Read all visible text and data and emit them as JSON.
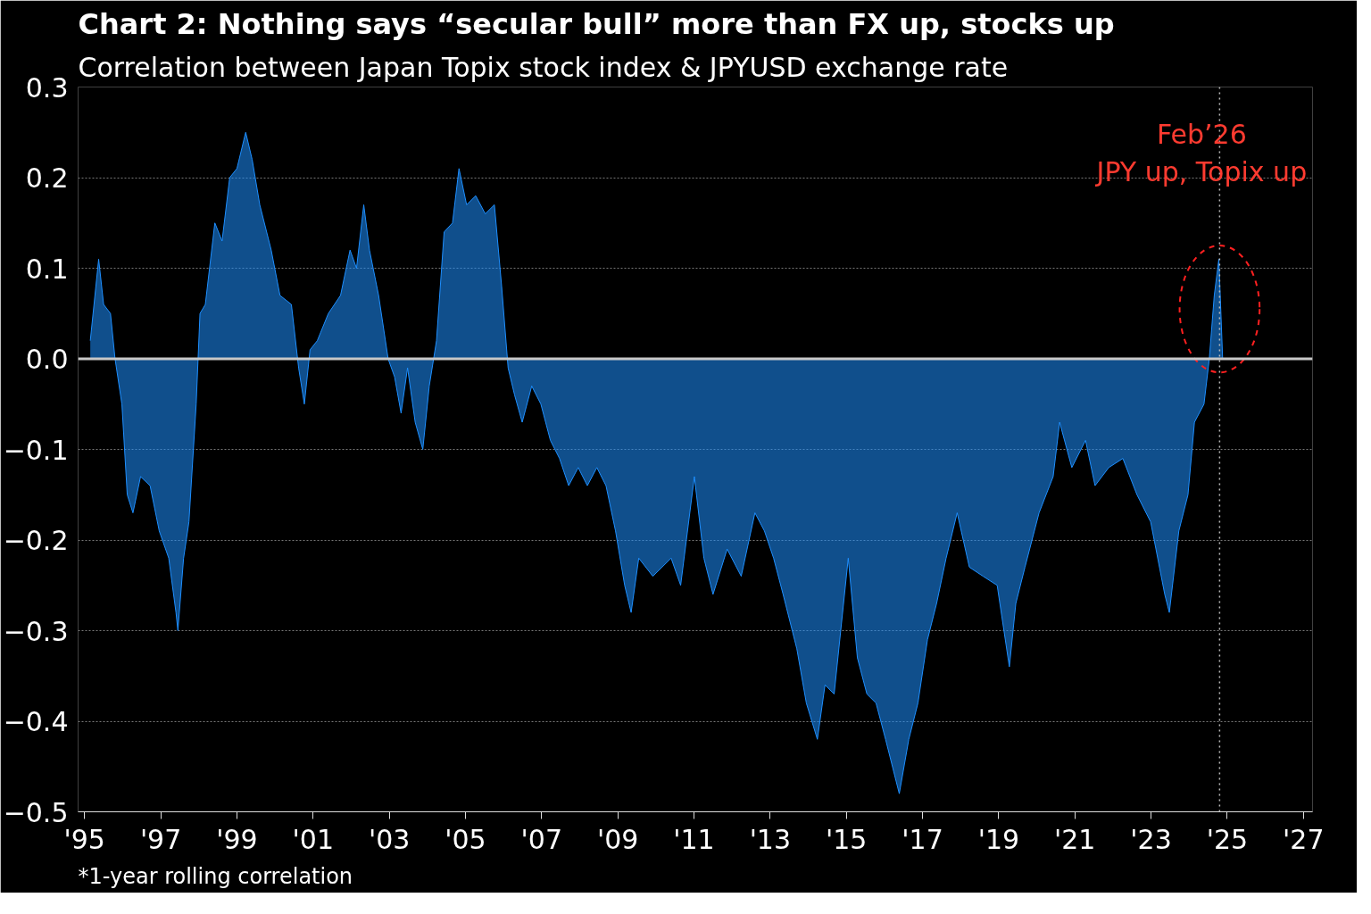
{
  "chart_data": {
    "type": "area",
    "title": "Chart 2: Nothing says “secular bull” more than FX up, stocks up",
    "subtitle": "Correlation between Japan Topix stock index & JPYUSD exchange rate",
    "x": [
      1995.15,
      1995.37,
      1995.5,
      1995.68,
      1995.8,
      1995.98,
      1996.12,
      1996.27,
      1996.47,
      1996.72,
      1996.96,
      1997.21,
      1997.4,
      1997.45,
      1997.6,
      1997.74,
      1997.93,
      1998.03,
      1998.17,
      1998.42,
      1998.61,
      1998.81,
      1999.0,
      1999.23,
      1999.4,
      1999.6,
      1999.9,
      2000.13,
      2000.43,
      2000.62,
      2000.77,
      2000.92,
      2001.11,
      2001.4,
      2001.72,
      2001.97,
      2002.14,
      2002.33,
      2002.48,
      2002.72,
      2002.97,
      2003.14,
      2003.31,
      2003.48,
      2003.68,
      2003.88,
      2004.05,
      2004.24,
      2004.44,
      2004.66,
      2004.83,
      2005.03,
      2005.27,
      2005.52,
      2005.76,
      2005.95,
      2006.12,
      2006.29,
      2006.49,
      2006.74,
      2006.98,
      2007.23,
      2007.47,
      2007.71,
      2007.96,
      2008.2,
      2008.45,
      2008.69,
      2008.94,
      2009.18,
      2009.35,
      2009.55,
      2009.92,
      2010.4,
      2010.65,
      2011.01,
      2011.26,
      2011.5,
      2011.87,
      2012.24,
      2012.6,
      2012.85,
      2013.09,
      2013.34,
      2013.7,
      2013.95,
      2014.24,
      2014.44,
      2014.68,
      2015.05,
      2015.29,
      2015.54,
      2015.78,
      2016.03,
      2016.39,
      2016.64,
      2016.88,
      2017.13,
      2017.37,
      2017.62,
      2017.91,
      2018.23,
      2018.59,
      2018.96,
      2019.28,
      2019.45,
      2019.69,
      2020.06,
      2020.43,
      2020.6,
      2020.92,
      2021.28,
      2021.53,
      2021.89,
      2022.26,
      2022.63,
      2022.99,
      2023.36,
      2023.48,
      2023.73,
      2023.97,
      2024.14,
      2024.39,
      2024.53,
      2024.66,
      2024.78,
      2024.88
    ],
    "series": [
      {
        "color": "#1e8fff",
        "values": [
          0.02,
          0.11,
          0.06,
          0.05,
          0.0,
          -0.05,
          -0.15,
          -0.17,
          -0.13,
          -0.14,
          -0.19,
          -0.22,
          -0.28,
          -0.3,
          -0.22,
          -0.18,
          -0.05,
          0.05,
          0.06,
          0.15,
          0.13,
          0.2,
          0.21,
          0.25,
          0.22,
          0.17,
          0.12,
          0.07,
          0.06,
          -0.01,
          -0.05,
          0.01,
          0.02,
          0.05,
          0.07,
          0.12,
          0.1,
          0.17,
          0.12,
          0.07,
          0.0,
          -0.02,
          -0.06,
          -0.01,
          -0.07,
          -0.1,
          -0.03,
          0.02,
          0.14,
          0.15,
          0.21,
          0.17,
          0.18,
          0.16,
          0.17,
          0.08,
          -0.01,
          -0.04,
          -0.07,
          -0.03,
          -0.05,
          -0.09,
          -0.11,
          -0.14,
          -0.12,
          -0.14,
          -0.12,
          -0.14,
          -0.19,
          -0.25,
          -0.28,
          -0.22,
          -0.24,
          -0.22,
          -0.25,
          -0.13,
          -0.22,
          -0.26,
          -0.21,
          -0.24,
          -0.17,
          -0.19,
          -0.22,
          -0.26,
          -0.32,
          -0.38,
          -0.42,
          -0.36,
          -0.37,
          -0.22,
          -0.33,
          -0.37,
          -0.38,
          -0.42,
          -0.48,
          -0.42,
          -0.38,
          -0.31,
          -0.27,
          -0.22,
          -0.17,
          -0.23,
          -0.24,
          -0.25,
          -0.34,
          -0.27,
          -0.23,
          -0.17,
          -0.13,
          -0.07,
          -0.12,
          -0.09,
          -0.14,
          -0.12,
          -0.11,
          -0.15,
          -0.18,
          -0.26,
          -0.28,
          -0.19,
          -0.15,
          -0.07,
          -0.05,
          0.0,
          0.07,
          0.11,
          0.0
        ]
      }
    ],
    "xlim": [
      1994.83,
      2027.24
    ],
    "xticks": [
      {
        "value": 1995,
        "label": "'95"
      },
      {
        "value": 1997,
        "label": "'97"
      },
      {
        "value": 1999,
        "label": "'99"
      },
      {
        "value": 2001,
        "label": "'01"
      },
      {
        "value": 2003,
        "label": "'03"
      },
      {
        "value": 2005,
        "label": "'05"
      },
      {
        "value": 2007,
        "label": "'07"
      },
      {
        "value": 2009,
        "label": "'09"
      },
      {
        "value": 2011,
        "label": "'11"
      },
      {
        "value": 2013,
        "label": "'13"
      },
      {
        "value": 2015,
        "label": "'15"
      },
      {
        "value": 2017,
        "label": "'17"
      },
      {
        "value": 2019,
        "label": "'19"
      },
      {
        "value": 2021,
        "label": "'21"
      },
      {
        "value": 2023,
        "label": "'23"
      },
      {
        "value": 2025,
        "label": "'25"
      },
      {
        "value": 2027,
        "label": "'27"
      }
    ],
    "ylim": [
      -0.5,
      0.3
    ],
    "yticks": [
      {
        "value": -0.5,
        "label": "−0.5"
      },
      {
        "value": -0.4,
        "label": "−0.4"
      },
      {
        "value": -0.3,
        "label": "−0.3"
      },
      {
        "value": -0.2,
        "label": "−0.2"
      },
      {
        "value": -0.1,
        "label": "−0.1"
      },
      {
        "value": 0,
        "label": "0.0"
      },
      {
        "value": 0.1,
        "label": "0.1"
      },
      {
        "value": 0.2,
        "label": "0.2"
      },
      {
        "value": 0.3,
        "label": "0.3"
      }
    ],
    "grid": "y",
    "ref_lines": [
      {
        "axis": "y",
        "value": 0,
        "label": null,
        "color": "#c8c8c8"
      },
      {
        "axis": "x",
        "value": 2024.8,
        "label": null,
        "color": "#bbbbbb",
        "line_style": "dotted"
      }
    ],
    "annotations": [
      "Feb’26",
      "JPY up, Topix up",
      "*1-year rolling correlation"
    ]
  }
}
